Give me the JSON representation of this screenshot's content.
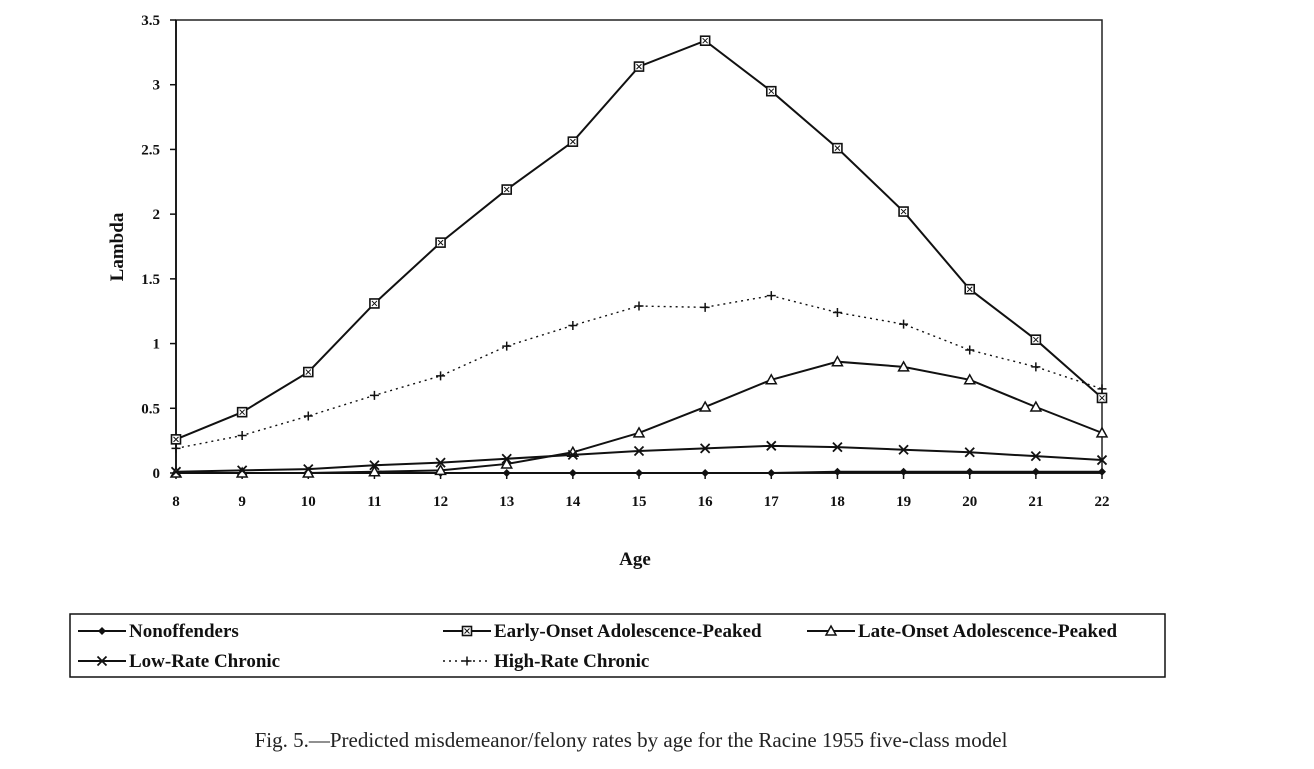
{
  "chart_data": {
    "type": "line",
    "title": "",
    "xlabel": "Age",
    "ylabel": "Lambda",
    "x": [
      8,
      9,
      10,
      11,
      12,
      13,
      14,
      15,
      16,
      17,
      18,
      19,
      20,
      21,
      22
    ],
    "xlim": [
      8,
      22
    ],
    "ylim": [
      0,
      3.5
    ],
    "yticks": [
      "0",
      "0.5",
      "1",
      "1.5",
      "2",
      "2.5",
      "3",
      "3.5"
    ],
    "xticks": [
      "8",
      "9",
      "10",
      "11",
      "12",
      "13",
      "14",
      "15",
      "16",
      "17",
      "18",
      "19",
      "20",
      "21",
      "22"
    ],
    "grid": false,
    "legend_position": "bottom",
    "series": [
      {
        "name": "Nonoffenders",
        "marker": "diamond",
        "line": "solid",
        "values": [
          0.0,
          0.0,
          0.0,
          0.0,
          0.0,
          0.0,
          0.0,
          0.0,
          0.0,
          0.0,
          0.01,
          0.01,
          0.01,
          0.01,
          0.01
        ]
      },
      {
        "name": "Early-Onset Adolescence-Peaked",
        "marker": "boxed-x",
        "line": "solid",
        "values": [
          0.26,
          0.47,
          0.78,
          1.31,
          1.78,
          2.19,
          2.56,
          3.14,
          3.34,
          2.95,
          2.51,
          2.02,
          1.42,
          1.03,
          0.58
        ]
      },
      {
        "name": "Late-Onset Adolescence-Peaked",
        "marker": "triangle",
        "line": "solid",
        "values": [
          0.0,
          0.0,
          0.0,
          0.01,
          0.02,
          0.07,
          0.16,
          0.31,
          0.51,
          0.72,
          0.86,
          0.82,
          0.72,
          0.51,
          0.31
        ]
      },
      {
        "name": "Low-Rate Chronic",
        "marker": "x",
        "line": "solid",
        "values": [
          0.01,
          0.02,
          0.03,
          0.06,
          0.08,
          0.11,
          0.14,
          0.17,
          0.19,
          0.21,
          0.2,
          0.18,
          0.16,
          0.13,
          0.1
        ]
      },
      {
        "name": "High-Rate Chronic",
        "marker": "plus",
        "line": "dotted",
        "values": [
          0.19,
          0.29,
          0.44,
          0.6,
          0.75,
          0.98,
          1.14,
          1.29,
          1.28,
          1.37,
          1.24,
          1.15,
          0.95,
          0.82,
          0.65
        ]
      }
    ]
  },
  "caption": "Fig. 5.—Predicted misdemeanor/felony rates by age for the Racine 1955 five-class model"
}
